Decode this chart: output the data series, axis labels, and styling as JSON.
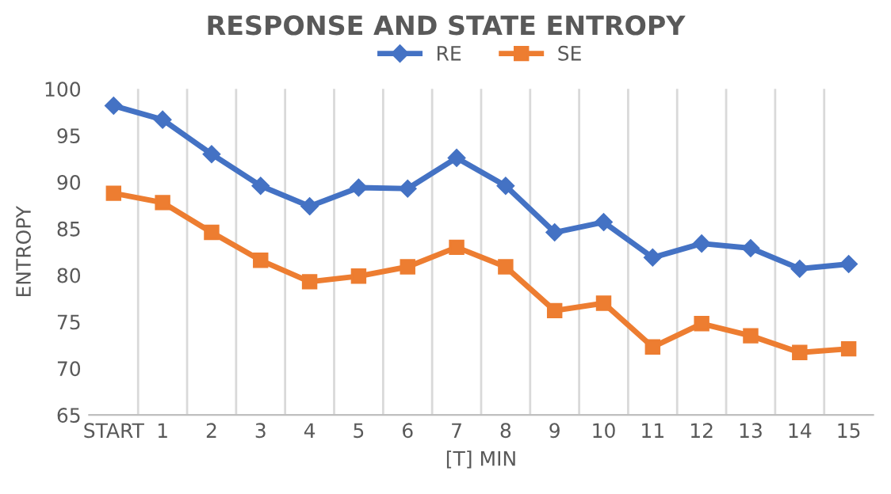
{
  "chart_data": {
    "type": "line",
    "title": "RESPONSE AND STATE ENTROPY",
    "xlabel": "[T] MIN",
    "ylabel": "ENTROPY",
    "categories": [
      "START",
      "1",
      "2",
      "3",
      "4",
      "5",
      "6",
      "7",
      "8",
      "9",
      "10",
      "11",
      "12",
      "13",
      "14",
      "15"
    ],
    "series": [
      {
        "name": "RE",
        "color": "#4472c4",
        "marker": "diamond",
        "values": [
          98.2,
          96.7,
          93.0,
          89.6,
          87.4,
          89.4,
          89.3,
          92.6,
          89.6,
          84.6,
          85.7,
          81.9,
          83.4,
          82.9,
          80.7,
          81.2
        ]
      },
      {
        "name": "SE",
        "color": "#ed7d31",
        "marker": "square",
        "values": [
          88.8,
          87.8,
          84.6,
          81.6,
          79.3,
          79.9,
          80.9,
          83.0,
          80.9,
          76.2,
          77.0,
          72.3,
          74.8,
          73.5,
          71.7,
          72.1
        ]
      }
    ],
    "ylim": [
      65,
      100
    ],
    "yticks": [
      65,
      70,
      75,
      80,
      85,
      90,
      95,
      100
    ],
    "grid": "x",
    "legend": "top",
    "line_style": "solid"
  }
}
